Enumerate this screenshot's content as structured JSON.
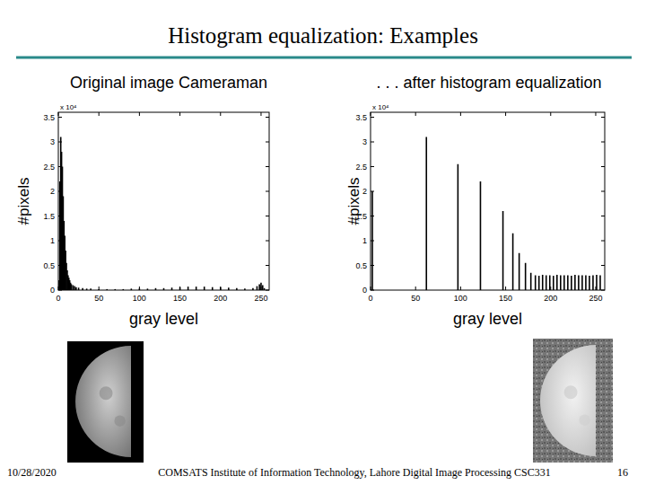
{
  "slide_title": "Histogram equalization: Examples",
  "footer": {
    "date": "10/28/2020",
    "text": "COMSATS Institute of Information Technology, Lahore   Digital Image Processing CSC331",
    "page": "16"
  },
  "chart_data": [
    {
      "type": "stem",
      "title": "Original image Cameraman",
      "x_label": "gray level",
      "y_label": "#pixels",
      "annotations": [
        "x 10⁴"
      ],
      "color": "#000000",
      "grid": false,
      "xlim": [
        0,
        260
      ],
      "ylim": [
        0,
        3.6
      ],
      "xticks": [
        0,
        50,
        100,
        150,
        200,
        250
      ],
      "yticks": [
        0,
        0.5,
        1,
        1.5,
        2,
        2.5,
        3,
        3.5
      ],
      "x": [
        1,
        2,
        3,
        4,
        5,
        6,
        7,
        8,
        9,
        10,
        11,
        12,
        13,
        14,
        15,
        16,
        18,
        20,
        22,
        25,
        30,
        35,
        40,
        50,
        60,
        70,
        80,
        90,
        100,
        110,
        120,
        130,
        140,
        150,
        160,
        170,
        180,
        190,
        200,
        210,
        220,
        230,
        240,
        245,
        248,
        250,
        252,
        254
      ],
      "values": [
        0.2,
        2.2,
        3.1,
        2.8,
        2.5,
        1.9,
        1.4,
        1.1,
        0.8,
        0.55,
        0.4,
        0.3,
        0.25,
        0.2,
        0.15,
        0.12,
        0.1,
        0.08,
        0.06,
        0.05,
        0.04,
        0.03,
        0.03,
        0.02,
        0.02,
        0.02,
        0.02,
        0.03,
        0.03,
        0.03,
        0.04,
        0.04,
        0.05,
        0.06,
        0.07,
        0.07,
        0.07,
        0.06,
        0.06,
        0.05,
        0.04,
        0.03,
        0.04,
        0.08,
        0.12,
        0.15,
        0.1,
        0.04
      ]
    },
    {
      "type": "stem",
      "title": ". . . after histogram equalization",
      "x_label": "gray level",
      "y_label": "#pixels",
      "annotations": [
        "x 10⁴"
      ],
      "color": "#000000",
      "grid": false,
      "xlim": [
        0,
        260
      ],
      "ylim": [
        0,
        3.6
      ],
      "xticks": [
        0,
        50,
        100,
        150,
        200,
        250
      ],
      "yticks": [
        0,
        0.5,
        1,
        1.5,
        2,
        2.5,
        3,
        3.5
      ],
      "x": [
        2,
        62,
        97,
        122,
        147,
        158,
        165,
        172,
        178,
        183,
        187,
        191,
        195,
        199,
        203,
        207,
        211,
        215,
        219,
        223,
        227,
        231,
        235,
        239,
        243,
        247,
        251,
        255
      ],
      "values": [
        2.0,
        3.1,
        2.55,
        2.2,
        1.6,
        1.15,
        0.75,
        0.55,
        0.35,
        0.3,
        0.29,
        0.31,
        0.3,
        0.3,
        0.29,
        0.31,
        0.3,
        0.3,
        0.3,
        0.29,
        0.31,
        0.3,
        0.3,
        0.3,
        0.29,
        0.3,
        0.31,
        0.3
      ]
    }
  ]
}
